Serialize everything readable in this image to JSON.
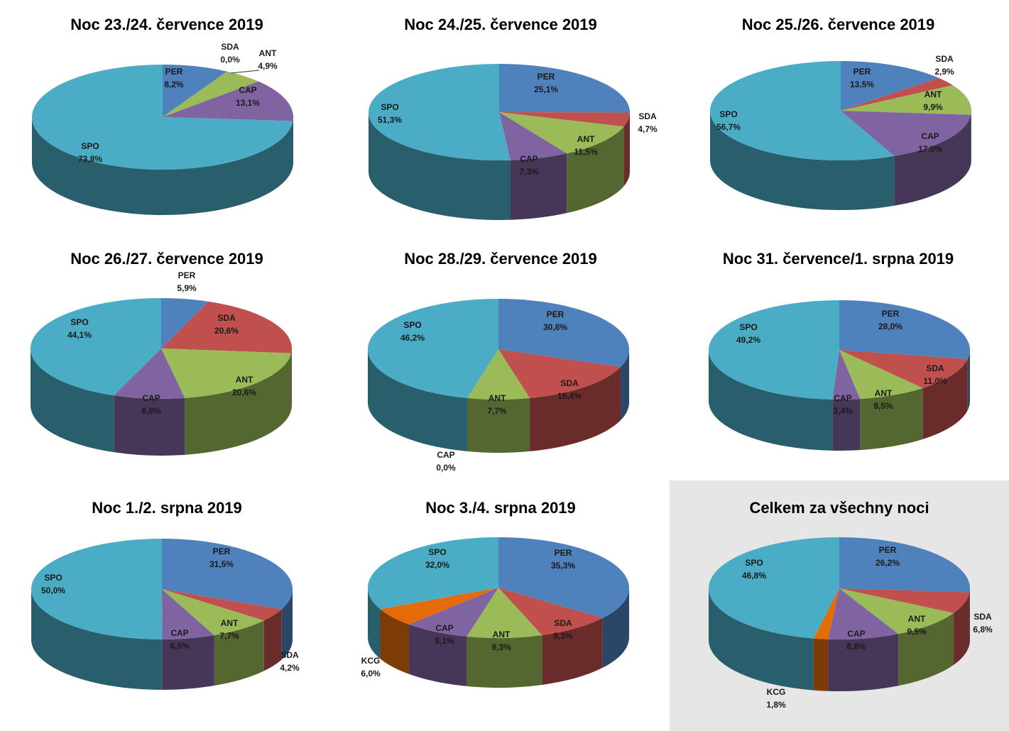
{
  "colors": {
    "PER": "#4f81bd",
    "SDA": "#c0504d",
    "ANT": "#9bbb59",
    "CAP": "#8064a2",
    "SPO": "#4bacc6",
    "KCG": "#e36c09"
  },
  "chart_data": [
    {
      "type": "pie",
      "title": "Noc 23./24. července 2019",
      "slices": [
        {
          "name": "PER",
          "value": 8.2,
          "label": "8,2%"
        },
        {
          "name": "SDA",
          "value": 0.0,
          "label": "0,0%"
        },
        {
          "name": "ANT",
          "value": 4.9,
          "label": "4,9%"
        },
        {
          "name": "CAP",
          "value": 13.1,
          "label": "13,1%"
        },
        {
          "name": "SPO",
          "value": 73.8,
          "label": "73,8%"
        }
      ]
    },
    {
      "type": "pie",
      "title": "Noc 24./25. července 2019",
      "slices": [
        {
          "name": "PER",
          "value": 25.1,
          "label": "25,1%"
        },
        {
          "name": "SDA",
          "value": 4.7,
          "label": "4,7%"
        },
        {
          "name": "ANT",
          "value": 11.5,
          "label": "11,5%"
        },
        {
          "name": "CAP",
          "value": 7.3,
          "label": "7,3%"
        },
        {
          "name": "SPO",
          "value": 51.3,
          "label": "51,3%"
        }
      ]
    },
    {
      "type": "pie",
      "title": "Noc 25./26. července 2019",
      "slices": [
        {
          "name": "PER",
          "value": 13.5,
          "label": "13,5%"
        },
        {
          "name": "SDA",
          "value": 2.9,
          "label": "2,9%"
        },
        {
          "name": "ANT",
          "value": 9.9,
          "label": "9,9%"
        },
        {
          "name": "CAP",
          "value": 17.0,
          "label": "17,0%"
        },
        {
          "name": "SPO",
          "value": 56.7,
          "label": "56,7%"
        }
      ]
    },
    {
      "type": "pie",
      "title": "Noc 26./27. července 2019",
      "slices": [
        {
          "name": "PER",
          "value": 5.9,
          "label": "5,9%"
        },
        {
          "name": "SDA",
          "value": 20.6,
          "label": "20,6%"
        },
        {
          "name": "ANT",
          "value": 20.6,
          "label": "20,6%"
        },
        {
          "name": "CAP",
          "value": 8.8,
          "label": "8,8%"
        },
        {
          "name": "SPO",
          "value": 44.1,
          "label": "44,1%"
        }
      ]
    },
    {
      "type": "pie",
      "title": "Noc 28./29. července 2019",
      "slices": [
        {
          "name": "PER",
          "value": 30.8,
          "label": "30,8%"
        },
        {
          "name": "SDA",
          "value": 15.4,
          "label": "15,4%"
        },
        {
          "name": "ANT",
          "value": 7.7,
          "label": "7,7%"
        },
        {
          "name": "CAP",
          "value": 0.0,
          "label": "0,0%"
        },
        {
          "name": "SPO",
          "value": 46.2,
          "label": "46,2%"
        }
      ]
    },
    {
      "type": "pie",
      "title": "Noc 31. července/1. srpna 2019",
      "slices": [
        {
          "name": "PER",
          "value": 28.0,
          "label": "28,0%"
        },
        {
          "name": "SDA",
          "value": 11.0,
          "label": "11,0%"
        },
        {
          "name": "ANT",
          "value": 8.5,
          "label": "8,5%"
        },
        {
          "name": "CAP",
          "value": 3.4,
          "label": "3,4%"
        },
        {
          "name": "SPO",
          "value": 49.2,
          "label": "49,2%"
        }
      ]
    },
    {
      "type": "pie",
      "title": "Noc 1./2. srpna 2019",
      "slices": [
        {
          "name": "PER",
          "value": 31.5,
          "label": "31,5%"
        },
        {
          "name": "SDA",
          "value": 4.2,
          "label": "4,2%"
        },
        {
          "name": "ANT",
          "value": 7.7,
          "label": "7,7%"
        },
        {
          "name": "CAP",
          "value": 6.5,
          "label": "6,5%"
        },
        {
          "name": "SPO",
          "value": 50.0,
          "label": "50,0%"
        }
      ]
    },
    {
      "type": "pie",
      "title": "Noc 3./4. srpna 2019",
      "slices": [
        {
          "name": "PER",
          "value": 35.3,
          "label": "35,3%"
        },
        {
          "name": "SDA",
          "value": 9.3,
          "label": "9,3%"
        },
        {
          "name": "ANT",
          "value": 9.3,
          "label": "9,3%"
        },
        {
          "name": "CAP",
          "value": 8.1,
          "label": "8,1%"
        },
        {
          "name": "KCG",
          "value": 6.0,
          "label": "6,0%"
        },
        {
          "name": "SPO",
          "value": 32.0,
          "label": "32,0%"
        }
      ]
    },
    {
      "type": "pie",
      "title": "Celkem za všechny noci",
      "slices": [
        {
          "name": "PER",
          "value": 26.2,
          "label": "26,2%"
        },
        {
          "name": "SDA",
          "value": 6.8,
          "label": "6,8%"
        },
        {
          "name": "ANT",
          "value": 9.5,
          "label": "9,5%"
        },
        {
          "name": "CAP",
          "value": 8.8,
          "label": "8,8%"
        },
        {
          "name": "KCG",
          "value": 1.8,
          "label": "1,8%"
        },
        {
          "name": "SPO",
          "value": 46.8,
          "label": "46,8%"
        }
      ]
    }
  ]
}
